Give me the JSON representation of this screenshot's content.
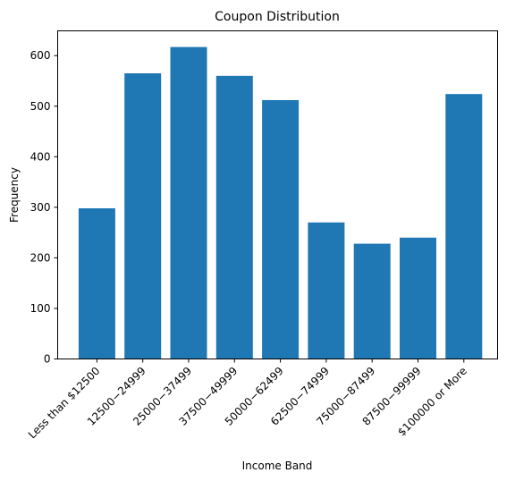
{
  "chart_data": {
    "type": "bar",
    "title": "Coupon Distribution",
    "xlabel": "Income Band",
    "ylabel": "Frequency",
    "categories": [
      "Less than $12500",
      "$12500 - $24999",
      "$25000 - $37499",
      "$37500 - $49999",
      "$50000 - $62499",
      "$62500 - $74999",
      "$75000 - $87499",
      "$87500 - $99999",
      "$100000 or More"
    ],
    "category_labels": [
      "Less than $12500",
      "12500−24999",
      "25000−37499",
      "37500−49999",
      "50000−62499",
      "62500−74999",
      "75000−87499",
      "87500−99999",
      "$100000 or More"
    ],
    "values": [
      298,
      565,
      617,
      560,
      512,
      270,
      228,
      240,
      524
    ],
    "ylim": [
      0,
      649
    ],
    "yticks": [
      0,
      100,
      200,
      300,
      400,
      500,
      600
    ],
    "bar_color": "#1f77b4",
    "grid": false,
    "legend": "none"
  }
}
